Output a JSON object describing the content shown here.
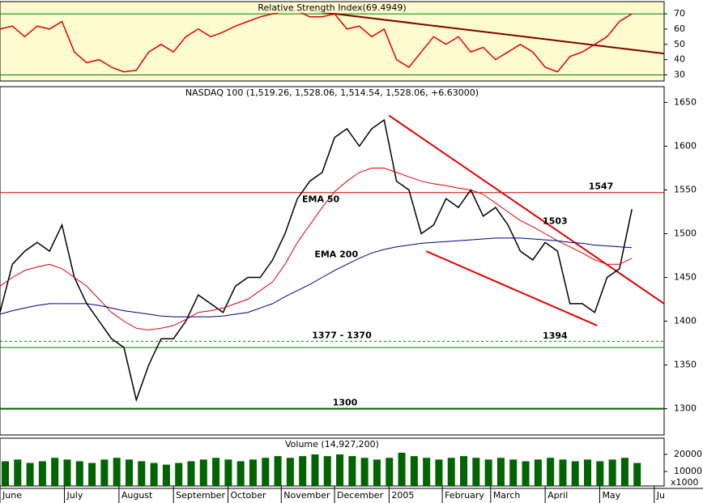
{
  "chart_data": [
    {
      "type": "line",
      "title": "Relative Strength Index(69.4949)",
      "x": [
        0,
        1,
        2,
        3,
        4,
        5,
        6,
        7,
        8,
        9,
        10,
        11,
        12,
        13,
        14,
        15,
        16,
        17,
        18,
        19,
        20,
        21,
        22,
        23,
        24,
        25,
        26,
        27,
        28,
        29,
        30,
        31,
        32,
        33,
        34,
        35,
        36,
        37,
        38,
        39,
        40,
        41,
        42,
        43,
        44,
        45,
        46,
        47,
        48,
        49,
        50,
        51
      ],
      "series": [
        {
          "color": "#e00000",
          "values": [
            60,
            62,
            55,
            62,
            60,
            65,
            45,
            38,
            40,
            35,
            32,
            33,
            45,
            50,
            45,
            55,
            60,
            55,
            58,
            62,
            65,
            68,
            70,
            72,
            72,
            68,
            68,
            70,
            60,
            62,
            55,
            60,
            40,
            35,
            45,
            55,
            50,
            55,
            45,
            48,
            40,
            45,
            50,
            45,
            35,
            32,
            42,
            45,
            50,
            55,
            65,
            70
          ]
        }
      ],
      "xlim": [
        0,
        53.6
      ],
      "ylim": [
        26,
        78
      ],
      "yticks": [
        30,
        40,
        50,
        60,
        70
      ],
      "levels": [
        {
          "values": [
            70
          ],
          "color": "#008000"
        },
        {
          "values": [
            30
          ],
          "color": "#008000"
        }
      ],
      "trendlines": [
        {
          "x": [
            25,
            53.6
          ],
          "y": [
            72,
            44
          ],
          "color": "#800000"
        }
      ],
      "background": "#fffbd0"
    },
    {
      "type": "line",
      "title": "NASDAQ 100 (1,519.26, 1,528.06, 1,514.54, 1,528.06, +6.63000)",
      "x": [
        0,
        1,
        2,
        3,
        4,
        5,
        6,
        7,
        8,
        9,
        10,
        11,
        12,
        13,
        14,
        15,
        16,
        17,
        18,
        19,
        20,
        21,
        22,
        23,
        24,
        25,
        26,
        27,
        28,
        29,
        30,
        31,
        32,
        33,
        34,
        35,
        36,
        37,
        38,
        39,
        40,
        41,
        42,
        43,
        44,
        45,
        46,
        47,
        48,
        49,
        50,
        51
      ],
      "series": [
        {
          "color": "#000000",
          "values": [
            1410,
            1465,
            1480,
            1490,
            1480,
            1510,
            1450,
            1420,
            1400,
            1380,
            1370,
            1310,
            1350,
            1380,
            1380,
            1400,
            1430,
            1420,
            1410,
            1440,
            1450,
            1450,
            1470,
            1500,
            1540,
            1560,
            1570,
            1610,
            1620,
            1600,
            1620,
            1630,
            1560,
            1550,
            1500,
            1510,
            1540,
            1530,
            1550,
            1520,
            1530,
            1510,
            1480,
            1470,
            1490,
            1480,
            1420,
            1420,
            1410,
            1450,
            1460,
            1528
          ]
        },
        {
          "name": "EMA 50",
          "color": "#e00000",
          "values": [
            1440,
            1450,
            1458,
            1462,
            1465,
            1460,
            1450,
            1440,
            1425,
            1410,
            1400,
            1392,
            1390,
            1392,
            1395,
            1402,
            1410,
            1412,
            1415,
            1420,
            1425,
            1435,
            1445,
            1465,
            1490,
            1510,
            1530,
            1548,
            1560,
            1570,
            1575,
            1575,
            1570,
            1565,
            1560,
            1557,
            1555,
            1552,
            1550,
            1545,
            1535,
            1525,
            1515,
            1508,
            1500,
            1492,
            1485,
            1478,
            1470,
            1465,
            1465,
            1472
          ]
        },
        {
          "name": "EMA 200",
          "color": "#000080",
          "values": [
            1408,
            1412,
            1415,
            1418,
            1420,
            1420,
            1420,
            1420,
            1418,
            1415,
            1412,
            1410,
            1408,
            1406,
            1405,
            1405,
            1405,
            1405,
            1406,
            1408,
            1410,
            1415,
            1420,
            1428,
            1435,
            1442,
            1450,
            1458,
            1465,
            1472,
            1478,
            1482,
            1485,
            1487,
            1489,
            1490,
            1491,
            1492,
            1493,
            1494,
            1495,
            1495,
            1495,
            1494,
            1493,
            1492,
            1490,
            1489,
            1487,
            1486,
            1485,
            1484
          ]
        }
      ],
      "xlim": [
        0,
        53.6
      ],
      "ylim": [
        1270,
        1668
      ],
      "yticks": [
        1300,
        1350,
        1400,
        1450,
        1500,
        1550,
        1600,
        1650
      ],
      "levels": [
        {
          "values": [
            1547
          ],
          "label": "1547",
          "color": "#d00000"
        },
        {
          "values": [
            1377,
            1370
          ],
          "label": "1377 - 1370",
          "color": "#008000"
        },
        {
          "values": [
            1300
          ],
          "label": "1300",
          "color": "#006400"
        }
      ],
      "trendlines": [
        {
          "x": [
            31.4,
            53.6
          ],
          "y": [
            1635,
            1420
          ],
          "color": "#e00000"
        },
        {
          "x": [
            34.4,
            48.2
          ],
          "y": [
            1480,
            1395
          ],
          "color": "#e00000"
        }
      ],
      "annotations": [
        {
          "text": "1503",
          "x": 44.8,
          "value": 1503,
          "color": "#c00000"
        },
        {
          "text": "1394",
          "x": 44.8,
          "value": 1394,
          "color": "#008000"
        }
      ],
      "background": "#ffffff"
    },
    {
      "type": "bar",
      "title": "Volume (14,927,200)",
      "x": [
        0,
        1,
        2,
        3,
        4,
        5,
        6,
        7,
        8,
        9,
        10,
        11,
        12,
        13,
        14,
        15,
        16,
        17,
        18,
        19,
        20,
        21,
        22,
        23,
        24,
        25,
        26,
        27,
        28,
        29,
        30,
        31,
        32,
        33,
        34,
        35,
        36,
        37,
        38,
        39,
        40,
        41,
        42,
        43,
        44,
        45,
        46,
        47,
        48,
        49,
        50,
        51
      ],
      "values": [
        16000,
        17000,
        15000,
        16000,
        18000,
        17000,
        16000,
        15000,
        17000,
        18000,
        17000,
        16000,
        15000,
        14000,
        15000,
        16000,
        17000,
        18000,
        17000,
        16000,
        17000,
        18000,
        19000,
        18000,
        19000,
        20000,
        19000,
        20000,
        19000,
        18000,
        17000,
        18000,
        21000,
        19000,
        18000,
        17000,
        18000,
        19000,
        18000,
        17000,
        18000,
        17000,
        16000,
        17000,
        18000,
        17000,
        16000,
        17000,
        16000,
        17000,
        18000,
        15000
      ],
      "color": "#006400",
      "xlim": [
        0,
        53.6
      ],
      "ylim": [
        1500,
        29500
      ],
      "yticks": [
        10000,
        20000
      ],
      "unit_label": "x1000",
      "xticks": [
        {
          "value": 0,
          "label": "June"
        },
        {
          "value": 5.2,
          "label": "July"
        },
        {
          "value": 9.6,
          "label": "August"
        },
        {
          "value": 14,
          "label": "September"
        },
        {
          "value": 18.4,
          "label": "October"
        },
        {
          "value": 22.7,
          "label": "November"
        },
        {
          "value": 27,
          "label": "December"
        },
        {
          "value": 31.4,
          "label": "2005"
        },
        {
          "value": 35.7,
          "label": "February"
        },
        {
          "value": 39.6,
          "label": "March"
        },
        {
          "value": 44,
          "label": "April"
        },
        {
          "value": 48.4,
          "label": "May"
        },
        {
          "value": 52.8,
          "label": "Ju"
        }
      ],
      "background": "#ffffff"
    }
  ]
}
